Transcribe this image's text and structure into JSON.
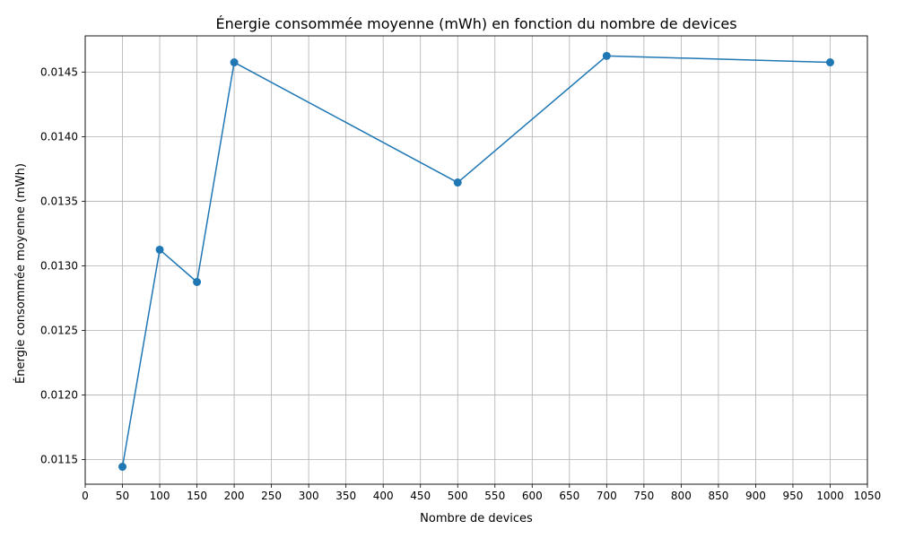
{
  "chart_data": {
    "type": "line",
    "title": "Énergie consommée moyenne (mWh) en fonction du nombre de devices",
    "xlabel": "Nombre de devices",
    "ylabel": "Énergie consommée moyenne (mWh)",
    "xlim": [
      0,
      1050
    ],
    "ylim": [
      0.01131,
      0.01478
    ],
    "x_ticks": [
      0,
      50,
      100,
      150,
      200,
      250,
      300,
      350,
      400,
      450,
      500,
      550,
      600,
      650,
      700,
      750,
      800,
      850,
      900,
      950,
      1000,
      1050
    ],
    "y_ticks": [
      0.0115,
      0.012,
      0.0125,
      0.013,
      0.0135,
      0.014,
      0.0145
    ],
    "y_tick_labels": [
      "0.0115",
      "0.0120",
      "0.0125",
      "0.0130",
      "0.0135",
      "0.0140",
      "0.0145"
    ],
    "grid": true,
    "series": [
      {
        "x": [
          50,
          100,
          150,
          200,
          500,
          700,
          1000
        ],
        "y": [
          0.011445,
          0.013125,
          0.012875,
          0.014575,
          0.013645,
          0.014625,
          0.014575
        ],
        "color": "#1f77b4",
        "marker": "circle"
      }
    ]
  }
}
